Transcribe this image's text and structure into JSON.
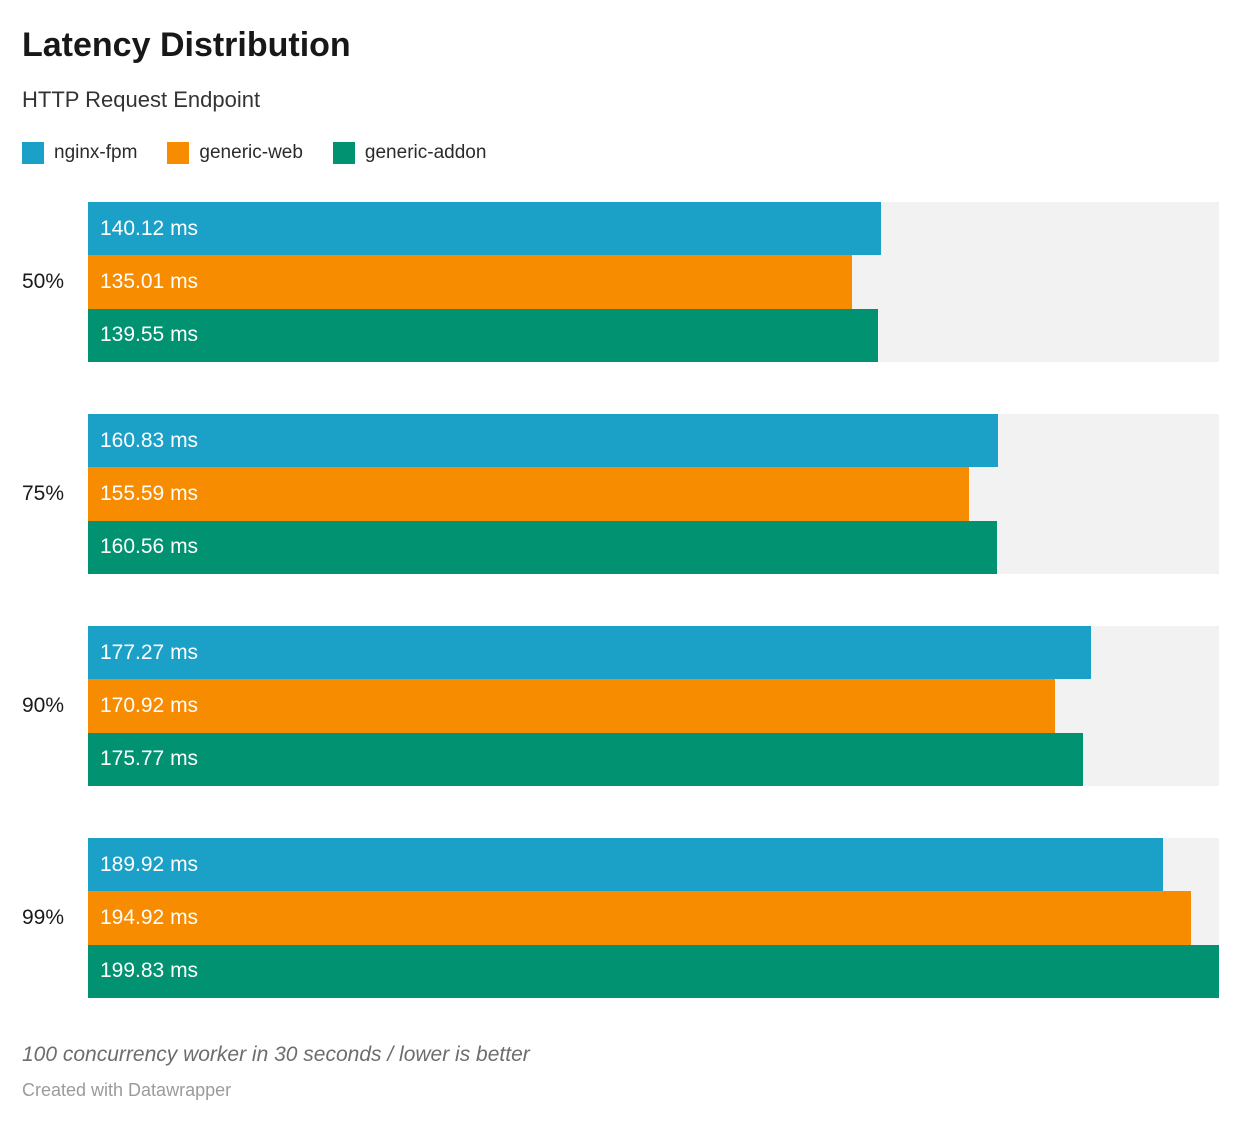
{
  "header": {
    "title": "Latency Distribution",
    "subtitle": "HTTP Request Endpoint"
  },
  "chart_data": {
    "type": "bar",
    "orientation": "horizontal",
    "title": "Latency Distribution",
    "subtitle": "HTTP Request Endpoint",
    "unit": "ms",
    "axis_min": 0,
    "axis_max": 199.83,
    "grid": false,
    "legend_position": "top",
    "track_color": "#f2f2f2",
    "categories": [
      "50%",
      "75%",
      "90%",
      "99%"
    ],
    "series": [
      {
        "name": "nginx-fpm",
        "color": "#1BA0C8",
        "values": [
          140.12,
          160.83,
          177.27,
          189.92
        ],
        "value_labels": [
          "140.12 ms",
          "160.83 ms",
          "177.27 ms",
          "189.92 ms"
        ]
      },
      {
        "name": "generic-web",
        "color": "#F88C00",
        "values": [
          135.01,
          155.59,
          170.92,
          194.92
        ],
        "value_labels": [
          "135.01 ms",
          "155.59 ms",
          "170.92 ms",
          "194.92 ms"
        ]
      },
      {
        "name": "generic-addon",
        "color": "#009271",
        "values": [
          139.55,
          160.56,
          175.77,
          199.83
        ],
        "value_labels": [
          "139.55 ms",
          "160.56 ms",
          "175.77 ms",
          "199.83 ms"
        ]
      }
    ]
  },
  "footer": {
    "note": "100 concurrency worker in 30 seconds / lower is better",
    "credit": "Created with Datawrapper"
  }
}
